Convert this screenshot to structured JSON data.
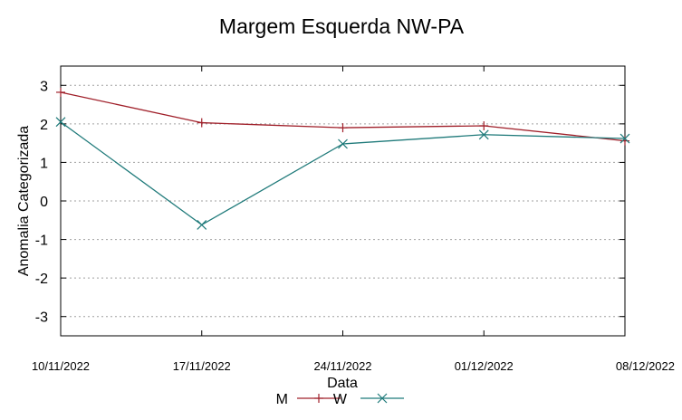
{
  "chart_data": {
    "type": "line",
    "title": "Margem Esquerda NW-PA",
    "xlabel": "Data",
    "ylabel": "Anomalia Categorizada",
    "categories": [
      "10/11/2022",
      "17/11/2022",
      "24/11/2022",
      "01/12/2022",
      "08/12/2022"
    ],
    "ylim": [
      -3.5,
      3.5
    ],
    "yticks": [
      "3",
      "2",
      "1",
      "0",
      "-1",
      "-2",
      "-3"
    ],
    "grid": true,
    "legend_position": "bottom-center",
    "series": [
      {
        "name": "M",
        "color": "#a0202a",
        "marker": "plus",
        "values": [
          2.82,
          2.03,
          1.9,
          1.95,
          1.56
        ]
      },
      {
        "name": "W",
        "color": "#1f7a7a",
        "marker": "cross",
        "values": [
          2.05,
          -0.62,
          1.48,
          1.72,
          1.62
        ]
      }
    ]
  }
}
